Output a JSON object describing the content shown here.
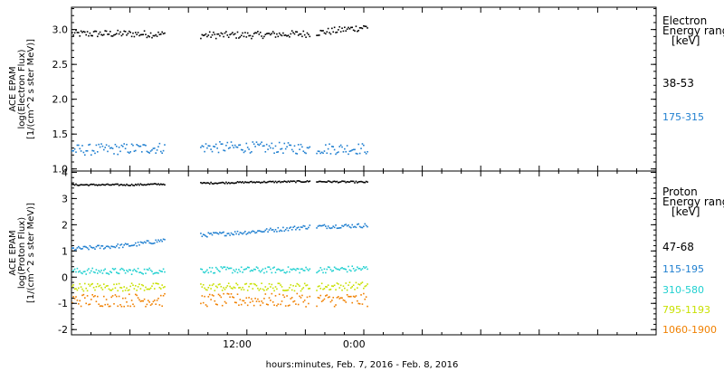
{
  "chart_data": [
    {
      "type": "scatter",
      "panel": "electron",
      "ylabel_lines": [
        "ACE EPAM",
        "log(Electron Flux)",
        "[1/(cm^2 s ster MeV)]"
      ],
      "ylim": [
        0.97,
        3.32
      ],
      "yticks": [
        "1.0",
        "1.5",
        "2.0",
        "2.5",
        "3.0"
      ],
      "yticks_values": [
        1.0,
        1.5,
        2.0,
        2.5,
        3.0
      ],
      "legend_title_lines": [
        "Electron",
        "Energy ranges",
        "[keV]"
      ],
      "series": [
        {
          "name": "38-53",
          "color": "#000000",
          "base": 2.95,
          "noise": 0.05,
          "trend": [
            2.95,
            2.95,
            2.93,
            2.93,
            2.95,
            3.05
          ]
        },
        {
          "name": "175-315",
          "color": "#1f7fd0",
          "base": 1.3,
          "noise": 0.08,
          "trend": [
            1.28,
            1.3,
            1.32,
            1.32,
            1.3,
            1.3
          ]
        }
      ]
    },
    {
      "type": "scatter",
      "panel": "proton",
      "ylabel_lines": [
        "ACE EPAM",
        "log(Proton Flux)",
        "[1/(cm^2 s ster MeV)]"
      ],
      "ylim": [
        -2.2,
        4.05
      ],
      "yticks": [
        "-2",
        "-1",
        "0",
        "1",
        "2",
        "3",
        "4"
      ],
      "yticks_values": [
        -2,
        -1,
        0,
        1,
        2,
        3,
        4
      ],
      "legend_title_lines": [
        "Proton",
        "Energy ranges",
        "[keV]"
      ],
      "series": [
        {
          "name": "47-68",
          "color": "#000000",
          "noise": 0.03,
          "trend": [
            3.55,
            3.55,
            3.6,
            3.65,
            3.68,
            3.65
          ]
        },
        {
          "name": "115-195",
          "color": "#1f7fd0",
          "noise": 0.08,
          "trend": [
            1.1,
            1.25,
            1.6,
            1.75,
            1.95,
            2.0
          ]
        },
        {
          "name": "310-580",
          "color": "#20d0d0",
          "noise": 0.12,
          "trend": [
            0.25,
            0.25,
            0.3,
            0.3,
            0.3,
            0.35
          ]
        },
        {
          "name": "795-1193",
          "color": "#c8e000",
          "noise": 0.15,
          "trend": [
            -0.35,
            -0.35,
            -0.35,
            -0.35,
            -0.35,
            -0.3
          ]
        },
        {
          "name": "1060-1900",
          "color": "#f08000",
          "noise": 0.25,
          "trend": [
            -0.85,
            -0.85,
            -0.85,
            -0.85,
            -0.85,
            -0.85
          ]
        }
      ]
    }
  ],
  "time_axis": {
    "xlim_hours": [
      0,
      60
    ],
    "labeled_ticks": [
      {
        "label": "12:00",
        "hour": 17
      },
      {
        "label": "0:00",
        "hour": 29
      }
    ],
    "data_segments_hours": [
      [
        0,
        9.5
      ],
      [
        13.2,
        24.4
      ],
      [
        25.1,
        30.4
      ]
    ],
    "xlabel": "hours:minutes, Feb.  7, 2016 - Feb.  8, 2016"
  }
}
